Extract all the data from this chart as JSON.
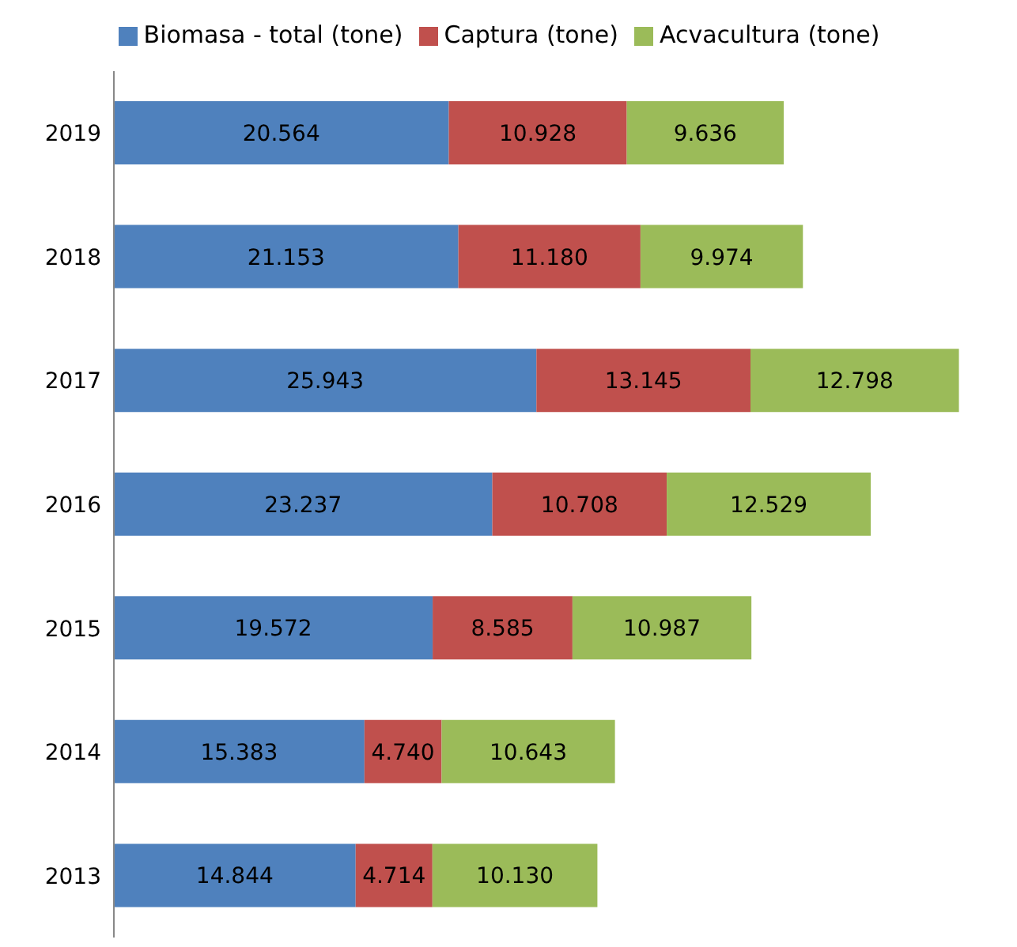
{
  "chart_data": {
    "type": "bar",
    "orientation": "horizontal",
    "stacked": true,
    "legend": "top",
    "grid": false,
    "categories": [
      "2019",
      "2018",
      "2017",
      "2016",
      "2015",
      "2014",
      "2013"
    ],
    "series": [
      {
        "name": "Biomasa - total (tone)",
        "color": "#4f81bd",
        "values": [
          20.564,
          21.153,
          25.943,
          23.237,
          19.572,
          15.383,
          14.844
        ],
        "value_labels": [
          "20.564",
          "21.153",
          "25.943",
          "23.237",
          "19.572",
          "15.383",
          "14.844"
        ]
      },
      {
        "name": "Captura (tone)",
        "color": "#c0504d",
        "values": [
          10.928,
          11.18,
          13.145,
          10.708,
          8.585,
          4.74,
          4.714
        ],
        "value_labels": [
          "10.928",
          "11.180",
          "13.145",
          "10.708",
          "8.585",
          "4.740",
          "4.714"
        ]
      },
      {
        "name": "Acvacultura (tone)",
        "color": "#9bbb59",
        "values": [
          9.636,
          9.974,
          12.798,
          12.529,
          10.987,
          10.643,
          10.13
        ],
        "value_labels": [
          "9.636",
          "9.974",
          "12.798",
          "12.529",
          "10.987",
          "10.643",
          "10.130"
        ]
      }
    ]
  }
}
